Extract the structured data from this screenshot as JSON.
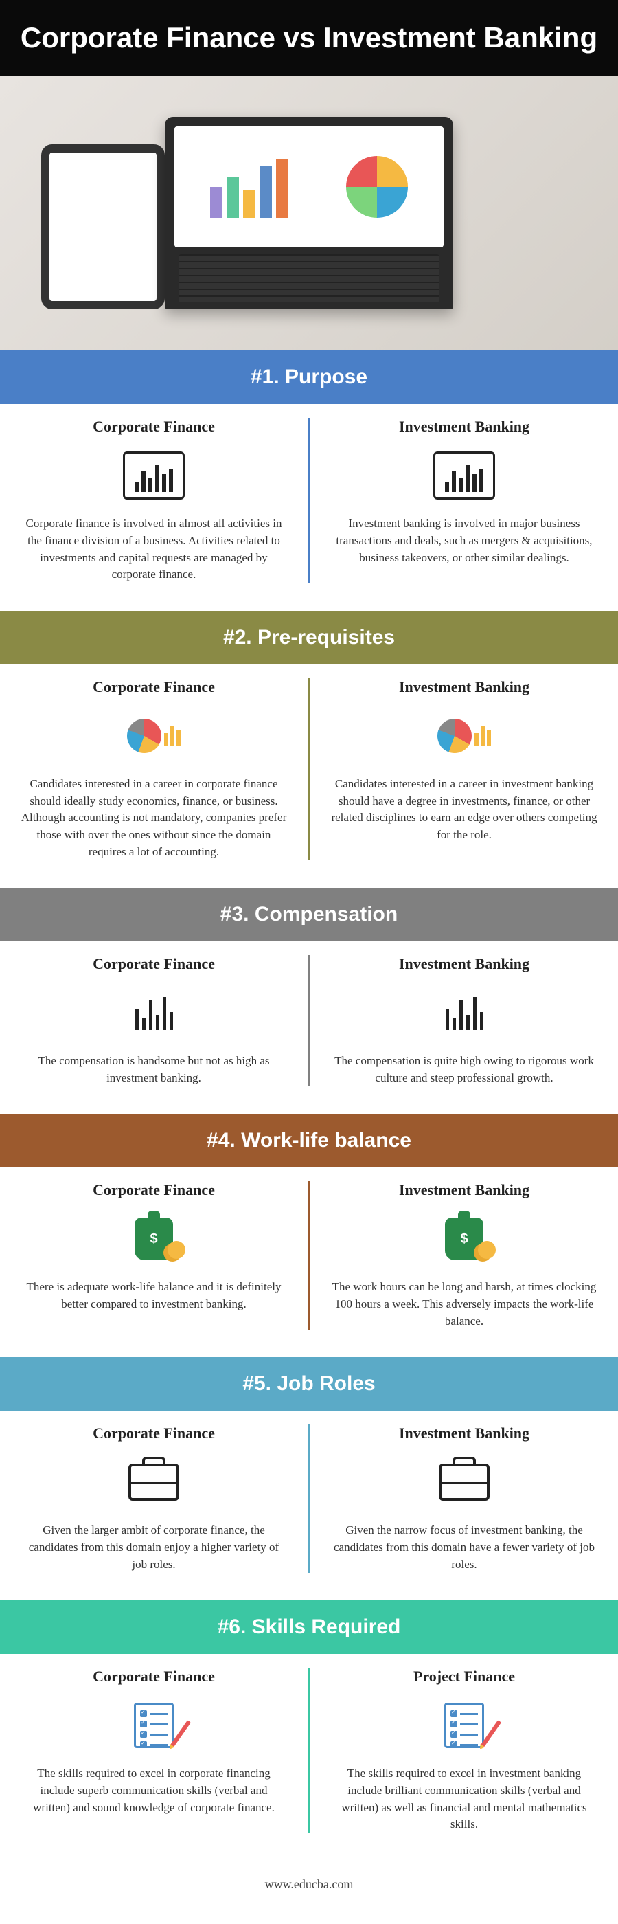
{
  "title": "Corporate Finance vs Investment Banking",
  "hero": {
    "bar_colors": [
      "#9c8bd4",
      "#5bc79a",
      "#f5b942",
      "#5b8bc7",
      "#e87a42"
    ],
    "bar_heights": [
      45,
      60,
      40,
      75,
      85
    ]
  },
  "col_labels": {
    "left": "Corporate Finance",
    "right": "Investment Banking",
    "right_alt": "Project Finance"
  },
  "sections": [
    {
      "num": "#1.",
      "title": "Purpose",
      "header_class": "sh1",
      "divider_color": "#4a7fc7",
      "icon": "bar-box",
      "left": "Corporate finance is involved in almost all activities in the finance division of a business. Activities related to investments and capital requests are managed by corporate finance.",
      "right": "Investment banking is involved in major business transactions and deals, such as mergers & acquisitions, business takeovers, or other similar dealings."
    },
    {
      "num": "#2.",
      "title": "Pre-requisites",
      "header_class": "sh2",
      "divider_color": "#8a8a45",
      "icon": "pie-bars",
      "left": "Candidates interested in a career in corporate finance should ideally study economics, finance, or business. Although accounting is not mandatory, companies prefer those with over the ones without since the domain requires a lot of accounting.",
      "right": "Candidates interested in a career in investment banking should have a degree in investments, finance, or other related disciplines to earn an edge over others competing for the role."
    },
    {
      "num": "#3.",
      "title": "Compensation",
      "header_class": "sh3",
      "divider_color": "#808080",
      "icon": "line-bars",
      "left": "The compensation is handsome but not as high as investment banking.",
      "right": "The compensation is quite high owing to rigorous work culture and steep professional growth."
    },
    {
      "num": "#4.",
      "title": "Work-life balance",
      "header_class": "sh4",
      "divider_color": "#9c5a2e",
      "icon": "money",
      "left": "There is adequate work-life balance and it is definitely better compared to investment banking.",
      "right": "The work hours can be long and harsh, at times clocking 100 hours a week. This adversely impacts the work-life balance."
    },
    {
      "num": "#5.",
      "title": "Job Roles",
      "header_class": "sh5",
      "divider_color": "#5baac7",
      "icon": "briefcase",
      "left": "Given the larger ambit of corporate finance, the candidates from this domain enjoy a higher variety of job roles.",
      "right": "Given the narrow focus of investment banking, the candidates from this domain have a fewer variety of job roles."
    },
    {
      "num": "#6.",
      "title": "Skills Required",
      "header_class": "sh6",
      "divider_color": "#3bc7a3",
      "icon": "checklist",
      "right_label_alt": true,
      "left": "The skills required to excel in corporate financing include superb communication skills (verbal and written) and sound knowledge of corporate finance.",
      "right": "The skills required to excel in investment banking include brilliant communication skills (verbal and written) as well as financial and mental mathematics skills."
    }
  ],
  "footer": "www.educba.com",
  "icons": {
    "bar_box_heights": [
      14,
      30,
      20,
      40,
      26,
      34
    ],
    "line_bar_heights": [
      30,
      18,
      44,
      22,
      48,
      26
    ],
    "pie_side_bars": [
      18,
      28,
      22
    ]
  }
}
